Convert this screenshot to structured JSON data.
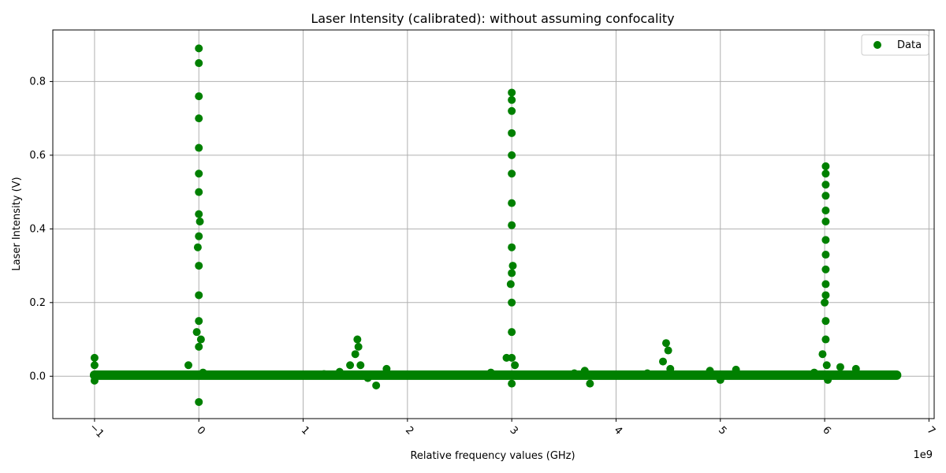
{
  "chart_data": {
    "type": "scatter",
    "title": "Laser Intensity (calibrated): without assuming confocality",
    "xlabel": "Relative frequency values (GHz)",
    "ylabel": "Laser Intensity (V)",
    "x_offset_label": "1e9",
    "xlim": [
      -1400000000.0,
      7050000000.0
    ],
    "ylim": [
      -0.115,
      0.94
    ],
    "xticks": [
      -1,
      0,
      1,
      2,
      3,
      4,
      5,
      6,
      7
    ],
    "xtick_labels": [
      "−1",
      "0",
      "1",
      "2",
      "3",
      "4",
      "5",
      "6",
      "7"
    ],
    "yticks": [
      0.0,
      0.2,
      0.4,
      0.6,
      0.8
    ],
    "ytick_labels": [
      "0.0",
      "0.2",
      "0.4",
      "0.6",
      "0.8"
    ],
    "grid": true,
    "legend_position": "top-right",
    "series": [
      {
        "name": "Data",
        "color": "#008000",
        "marker": "circle",
        "points": [
          [
            -1000000000.0,
            0.05
          ],
          [
            -1000000000.0,
            0.03
          ],
          [
            -1000000000.0,
            0.0
          ],
          [
            -1000000000.0,
            -0.012
          ],
          [
            -800000000.0,
            0.003
          ],
          [
            -600000000.0,
            0.002
          ],
          [
            -400000000.0,
            0.003
          ],
          [
            -200000000.0,
            0.004
          ],
          [
            -100000000.0,
            0.03
          ],
          [
            -20000000.0,
            0.12
          ],
          [
            -10000000.0,
            0.35
          ],
          [
            0.0,
            0.89
          ],
          [
            0.0,
            0.85
          ],
          [
            0.0,
            0.76
          ],
          [
            0.0,
            0.7
          ],
          [
            0.0,
            0.62
          ],
          [
            0.0,
            0.55
          ],
          [
            0.0,
            0.5
          ],
          [
            0.0,
            0.44
          ],
          [
            0.0,
            0.38
          ],
          [
            0.0,
            0.3
          ],
          [
            0.0,
            0.22
          ],
          [
            0.0,
            0.15
          ],
          [
            0.0,
            0.08
          ],
          [
            0.0,
            -0.07
          ],
          [
            10000000.0,
            0.42
          ],
          [
            20000000.0,
            0.1
          ],
          [
            40000000.0,
            0.01
          ],
          [
            200000000.0,
            0.002
          ],
          [
            400000000.0,
            0.003
          ],
          [
            600000000.0,
            0.002
          ],
          [
            800000000.0,
            0.004
          ],
          [
            1000000000.0,
            0.003
          ],
          [
            1200000000.0,
            0.006
          ],
          [
            1350000000.0,
            0.012
          ],
          [
            1450000000.0,
            0.03
          ],
          [
            1500000000.0,
            0.06
          ],
          [
            1520000000.0,
            0.1
          ],
          [
            1530000000.0,
            0.08
          ],
          [
            1550000000.0,
            0.03
          ],
          [
            1620000000.0,
            -0.005
          ],
          [
            1700000000.0,
            -0.025
          ],
          [
            1800000000.0,
            0.02
          ],
          [
            2000000000.0,
            0.003
          ],
          [
            2200000000.0,
            0.002
          ],
          [
            2400000000.0,
            0.003
          ],
          [
            2600000000.0,
            0.004
          ],
          [
            2800000000.0,
            0.01
          ],
          [
            2950000000.0,
            0.05
          ],
          [
            2990000000.0,
            0.25
          ],
          [
            3000000000.0,
            0.77
          ],
          [
            3000000000.0,
            0.75
          ],
          [
            3000000000.0,
            0.72
          ],
          [
            3000000000.0,
            0.66
          ],
          [
            3000000000.0,
            0.6
          ],
          [
            3000000000.0,
            0.55
          ],
          [
            3000000000.0,
            0.47
          ],
          [
            3000000000.0,
            0.41
          ],
          [
            3000000000.0,
            0.35
          ],
          [
            3000000000.0,
            0.28
          ],
          [
            3000000000.0,
            0.2
          ],
          [
            3000000000.0,
            0.12
          ],
          [
            3000000000.0,
            0.05
          ],
          [
            3000000000.0,
            -0.02
          ],
          [
            3010000000.0,
            0.3
          ],
          [
            3030000000.0,
            0.03
          ],
          [
            3200000000.0,
            0.003
          ],
          [
            3400000000.0,
            0.002
          ],
          [
            3600000000.0,
            0.008
          ],
          [
            3700000000.0,
            0.015
          ],
          [
            3750000000.0,
            -0.02
          ],
          [
            3900000000.0,
            0.003
          ],
          [
            4100000000.0,
            0.002
          ],
          [
            4300000000.0,
            0.008
          ],
          [
            4450000000.0,
            0.04
          ],
          [
            4480000000.0,
            0.09
          ],
          [
            4500000000.0,
            0.07
          ],
          [
            4520000000.0,
            0.02
          ],
          [
            4700000000.0,
            0.003
          ],
          [
            4900000000.0,
            0.015
          ],
          [
            5000000000.0,
            -0.01
          ],
          [
            5150000000.0,
            0.018
          ],
          [
            5300000000.0,
            0.003
          ],
          [
            5500000000.0,
            0.002
          ],
          [
            5700000000.0,
            0.004
          ],
          [
            5900000000.0,
            0.01
          ],
          [
            5980000000.0,
            0.06
          ],
          [
            6000000000.0,
            0.2
          ],
          [
            6010000000.0,
            0.57
          ],
          [
            6010000000.0,
            0.55
          ],
          [
            6010000000.0,
            0.52
          ],
          [
            6010000000.0,
            0.49
          ],
          [
            6010000000.0,
            0.45
          ],
          [
            6010000000.0,
            0.42
          ],
          [
            6010000000.0,
            0.37
          ],
          [
            6010000000.0,
            0.33
          ],
          [
            6010000000.0,
            0.29
          ],
          [
            6010000000.0,
            0.25
          ],
          [
            6010000000.0,
            0.22
          ],
          [
            6010000000.0,
            0.15
          ],
          [
            6010000000.0,
            0.1
          ],
          [
            6020000000.0,
            0.03
          ],
          [
            6030000000.0,
            -0.01
          ],
          [
            6150000000.0,
            0.025
          ],
          [
            6300000000.0,
            0.02
          ],
          [
            6500000000.0,
            0.004
          ],
          [
            6680000000.0,
            0.003
          ]
        ]
      }
    ]
  }
}
